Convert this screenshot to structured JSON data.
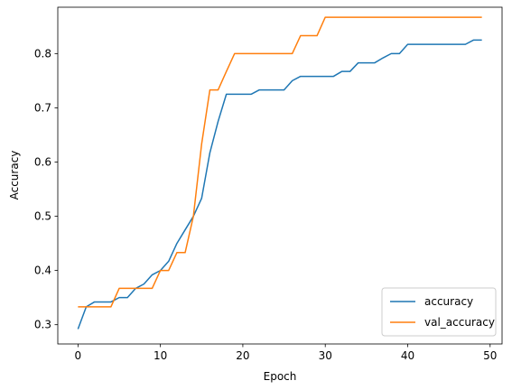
{
  "chart_data": {
    "type": "line",
    "title": "",
    "xlabel": "Epoch",
    "ylabel": "Accuracy",
    "xlim": [
      -2.45,
      51.45
    ],
    "ylim": [
      0.2645,
      0.8855
    ],
    "xticks": [
      0,
      10,
      20,
      30,
      40,
      50
    ],
    "yticks": [
      0.3,
      0.4,
      0.5,
      0.6,
      0.7,
      0.8
    ],
    "ytick_labels": [
      "0.3",
      "0.4",
      "0.5",
      "0.6",
      "0.7",
      "0.8"
    ],
    "grid": false,
    "legend_position": "lower-right",
    "x": [
      0,
      1,
      2,
      3,
      4,
      5,
      6,
      7,
      8,
      9,
      10,
      11,
      12,
      13,
      14,
      15,
      16,
      17,
      18,
      19,
      20,
      21,
      22,
      23,
      24,
      25,
      26,
      27,
      28,
      29,
      30,
      31,
      32,
      33,
      34,
      35,
      36,
      37,
      38,
      39,
      40,
      41,
      42,
      43,
      44,
      45,
      46,
      47,
      48,
      49
    ],
    "series": [
      {
        "name": "accuracy",
        "color": "#1f77b4",
        "values": [
          0.292,
          0.333,
          0.342,
          0.342,
          0.342,
          0.35,
          0.35,
          0.367,
          0.375,
          0.392,
          0.4,
          0.417,
          0.45,
          0.475,
          0.5,
          0.533,
          0.617,
          0.675,
          0.725,
          0.725,
          0.725,
          0.725,
          0.733,
          0.733,
          0.733,
          0.733,
          0.75,
          0.758,
          0.758,
          0.758,
          0.758,
          0.758,
          0.767,
          0.767,
          0.783,
          0.783,
          0.783,
          0.792,
          0.8,
          0.8,
          0.817,
          0.817,
          0.817,
          0.817,
          0.817,
          0.817,
          0.817,
          0.817,
          0.825,
          0.825
        ]
      },
      {
        "name": "val_accuracy",
        "color": "#ff7f0e",
        "values": [
          0.333,
          0.333,
          0.333,
          0.333,
          0.333,
          0.367,
          0.367,
          0.367,
          0.367,
          0.367,
          0.4,
          0.4,
          0.433,
          0.433,
          0.5,
          0.633,
          0.733,
          0.733,
          0.767,
          0.8,
          0.8,
          0.8,
          0.8,
          0.8,
          0.8,
          0.8,
          0.8,
          0.833,
          0.833,
          0.833,
          0.867,
          0.867,
          0.867,
          0.867,
          0.867,
          0.867,
          0.867,
          0.867,
          0.867,
          0.867,
          0.867,
          0.867,
          0.867,
          0.867,
          0.867,
          0.867,
          0.867,
          0.867,
          0.867,
          0.867
        ]
      }
    ]
  }
}
